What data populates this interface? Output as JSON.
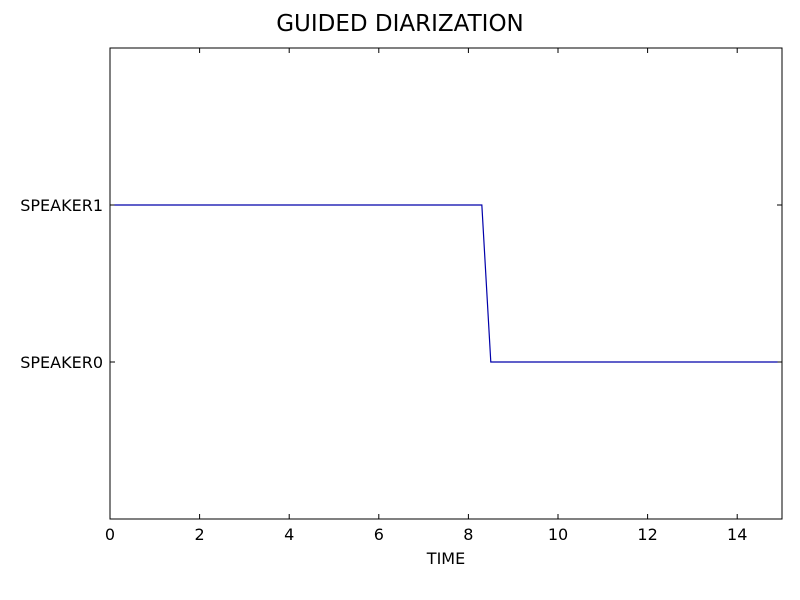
{
  "chart_data": {
    "type": "line",
    "title": "GUIDED DIARIZATION",
    "xlabel": "TIME",
    "ylabel": "",
    "xlim": [
      0,
      15
    ],
    "ylim": [
      -1,
      2
    ],
    "x_ticks": [
      0,
      2,
      4,
      6,
      8,
      10,
      12,
      14
    ],
    "x_tick_labels": [
      "0",
      "2",
      "4",
      "6",
      "8",
      "10",
      "12",
      "14"
    ],
    "y_ticks": [
      0,
      1
    ],
    "y_tick_labels": [
      "SPEAKER0",
      "SPEAKER1"
    ],
    "grid": false,
    "series": [
      {
        "color": "#0000aa",
        "x": [
          0.1,
          8.3,
          8.5,
          14.9
        ],
        "y": [
          1,
          1,
          0,
          0
        ]
      }
    ]
  }
}
